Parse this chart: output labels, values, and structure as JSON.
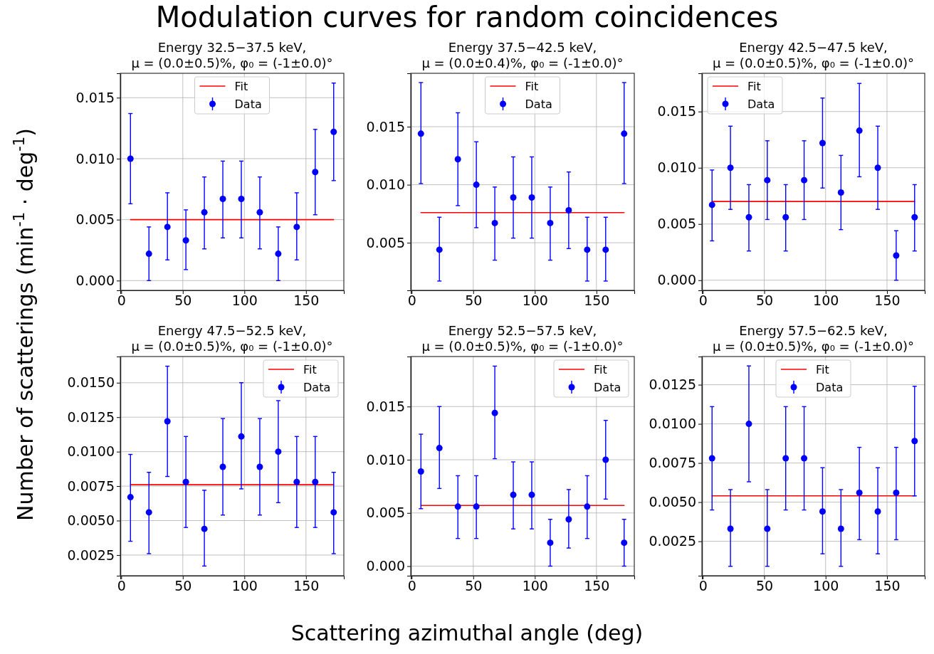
{
  "chart_data": [
    {
      "type": "other",
      "title": "Modulation curves for random coincidences",
      "xlabel": "Scattering azimuthal angle (deg)",
      "ylabel": "Number of scatterings (min$^{-1}$ · deg$^{-1}$)"
    },
    {
      "type": "scatter",
      "title": "Energy 32.5−37.5 keV,\nμ = (0.0±0.5)%, φ₀ = (-1±0.0)°",
      "xlim": [
        -0.75,
        180.75
      ],
      "xticks": [
        0,
        50,
        100,
        150
      ],
      "ylim": [
        -0.0008,
        0.017
      ],
      "yticks": [
        {
          "value": 0,
          "label": "0.000"
        },
        0.005,
        {
          "value": 0.01,
          "label": "0.010"
        },
        0.015
      ],
      "grid": true,
      "legend": "top",
      "series": [
        {
          "name": "Fit",
          "type": "line",
          "marker": "none",
          "color": "#ff0000",
          "x": [
            7.5,
            172.5
          ],
          "values": [
            0.005,
            0.005
          ]
        },
        {
          "name": "Data",
          "type": "scatter",
          "marker": "circle",
          "color": "#0000ff",
          "x": [
            7.5,
            22.5,
            37.5,
            52.5,
            67.5,
            82.5,
            97.5,
            112.5,
            127.5,
            142.5,
            157.5,
            172.5
          ],
          "values": [
            0.01,
            0.0022,
            0.0044,
            0.0033,
            0.0056,
            0.0067,
            0.0067,
            0.0056,
            0.0022,
            0.0044,
            0.0089,
            0.0122
          ],
          "errors": [
            [
              0.0063,
              0.0137
            ],
            [
              0,
              0.0044
            ],
            [
              0.0017,
              0.0072
            ],
            [
              0.0009,
              0.0058
            ],
            [
              0.0026,
              0.0085
            ],
            [
              0.0035,
              0.0098
            ],
            [
              0.0035,
              0.0098
            ],
            [
              0.0026,
              0.0085
            ],
            [
              0,
              0.0044
            ],
            [
              0.0017,
              0.0072
            ],
            [
              0.0054,
              0.0124
            ],
            [
              0.0082,
              0.0162
            ]
          ]
        }
      ]
    },
    {
      "type": "scatter",
      "title": "Energy 37.5−42.5 keV,\nμ = (0.0±0.4)%, φ₀ = (-1±0.0)°",
      "xlim": [
        -0.75,
        180.75
      ],
      "xticks": [
        0,
        50,
        100,
        150
      ],
      "ylim": [
        0.0009,
        0.0196
      ],
      "yticks": [
        0.005,
        {
          "value": 0.01,
          "label": "0.010"
        },
        0.015
      ],
      "grid": true,
      "legend": "top",
      "series": [
        {
          "name": "Fit",
          "type": "line",
          "marker": "none",
          "color": "#ff0000",
          "x": [
            7.5,
            172.5
          ],
          "values": [
            0.0076,
            0.0076
          ]
        },
        {
          "name": "Data",
          "type": "scatter",
          "marker": "circle",
          "color": "#0000ff",
          "x": [
            7.5,
            22.5,
            37.5,
            52.5,
            67.5,
            82.5,
            97.5,
            112.5,
            127.5,
            142.5,
            157.5,
            172.5
          ],
          "values": [
            0.0144,
            0.0044,
            0.0122,
            0.01,
            0.0067,
            0.0089,
            0.0089,
            0.0067,
            0.0078,
            0.0044,
            0.0044,
            0.0144
          ],
          "errors": [
            [
              0.0101,
              0.0188
            ],
            [
              0.0017,
              0.0072
            ],
            [
              0.0082,
              0.0162
            ],
            [
              0.0063,
              0.0137
            ],
            [
              0.0035,
              0.0098
            ],
            [
              0.0054,
              0.0124
            ],
            [
              0.0054,
              0.0124
            ],
            [
              0.0035,
              0.0098
            ],
            [
              0.0045,
              0.0111
            ],
            [
              0.0017,
              0.0072
            ],
            [
              0.0017,
              0.0072
            ],
            [
              0.0101,
              0.0188
            ]
          ]
        }
      ]
    },
    {
      "type": "scatter",
      "title": "Energy 42.5−47.5 keV,\nμ = (0.0±0.5)%, φ₀ = (-1±0.0)°",
      "xlim": [
        -0.75,
        180.75
      ],
      "xticks": [
        0,
        50,
        100,
        150
      ],
      "ylim": [
        -0.0009,
        0.0184
      ],
      "yticks": [
        {
          "value": 0,
          "label": "0.000"
        },
        0.005,
        {
          "value": 0.01,
          "label": "0.010"
        },
        0.015
      ],
      "grid": true,
      "legend": "top left",
      "series": [
        {
          "name": "Fit",
          "type": "line",
          "marker": "none",
          "color": "#ff0000",
          "x": [
            7.5,
            172.5
          ],
          "values": [
            0.007,
            0.007
          ]
        },
        {
          "name": "Data",
          "type": "scatter",
          "marker": "circle",
          "color": "#0000ff",
          "x": [
            7.5,
            22.5,
            37.5,
            52.5,
            67.5,
            82.5,
            97.5,
            112.5,
            127.5,
            142.5,
            157.5,
            172.5
          ],
          "values": [
            0.0067,
            0.01,
            0.0056,
            0.0089,
            0.0056,
            0.0089,
            0.0122,
            0.0078,
            0.0133,
            0.01,
            0.0022,
            0.0056
          ],
          "errors": [
            [
              0.0035,
              0.0098
            ],
            [
              0.0063,
              0.0137
            ],
            [
              0.0026,
              0.0085
            ],
            [
              0.0054,
              0.0124
            ],
            [
              0.0026,
              0.0085
            ],
            [
              0.0054,
              0.0124
            ],
            [
              0.0082,
              0.0162
            ],
            [
              0.0045,
              0.0111
            ],
            [
              0.0092,
              0.0175
            ],
            [
              0.0063,
              0.0137
            ],
            [
              0,
              0.0044
            ],
            [
              0.0026,
              0.0085
            ]
          ]
        }
      ]
    },
    {
      "type": "scatter",
      "title": "Energy 47.5−52.5 keV,\nμ = (0.0±0.5)%, φ₀ = (-1±0.0)°",
      "xlim": [
        -0.75,
        180.75
      ],
      "xticks": [
        0,
        50,
        100,
        150
      ],
      "ylim": [
        0.001,
        0.0169
      ],
      "yticks": [
        0.0025,
        {
          "value": 0.005,
          "label": "0.0050"
        },
        0.0075,
        {
          "value": 0.01,
          "label": "0.0100"
        },
        0.0125,
        {
          "value": 0.015,
          "label": "0.0150"
        }
      ],
      "grid": true,
      "legend": "top right",
      "series": [
        {
          "name": "Fit",
          "type": "line",
          "marker": "none",
          "color": "#ff0000",
          "x": [
            7.5,
            172.5
          ],
          "values": [
            0.0076,
            0.0076
          ]
        },
        {
          "name": "Data",
          "type": "scatter",
          "marker": "circle",
          "color": "#0000ff",
          "x": [
            7.5,
            22.5,
            37.5,
            52.5,
            67.5,
            82.5,
            97.5,
            112.5,
            127.5,
            142.5,
            157.5,
            172.5
          ],
          "values": [
            0.0067,
            0.0056,
            0.0122,
            0.0078,
            0.0044,
            0.0089,
            0.0111,
            0.0089,
            0.01,
            0.0078,
            0.0078,
            0.0056
          ],
          "errors": [
            [
              0.0035,
              0.0098
            ],
            [
              0.0026,
              0.0085
            ],
            [
              0.0082,
              0.0162
            ],
            [
              0.0045,
              0.0111
            ],
            [
              0.0017,
              0.0072
            ],
            [
              0.0054,
              0.0124
            ],
            [
              0.0073,
              0.015
            ],
            [
              0.0054,
              0.0124
            ],
            [
              0.0063,
              0.0137
            ],
            [
              0.0045,
              0.0111
            ],
            [
              0.0045,
              0.0111
            ],
            [
              0.0026,
              0.0085
            ]
          ]
        }
      ]
    },
    {
      "type": "scatter",
      "title": "Energy 52.5−57.5 keV,\nμ = (0.0±0.5)%, φ₀ = (-1±0.0)°",
      "xlim": [
        -0.75,
        180.75
      ],
      "xticks": [
        0,
        50,
        100,
        150
      ],
      "ylim": [
        -0.0009,
        0.0197
      ],
      "yticks": [
        {
          "value": 0,
          "label": "0.000"
        },
        0.005,
        {
          "value": 0.01,
          "label": "0.010"
        },
        0.015
      ],
      "grid": true,
      "legend": "top right",
      "series": [
        {
          "name": "Fit",
          "type": "line",
          "marker": "none",
          "color": "#ff0000",
          "x": [
            7.5,
            172.5
          ],
          "values": [
            0.0057,
            0.0057
          ]
        },
        {
          "name": "Data",
          "type": "scatter",
          "marker": "circle",
          "color": "#0000ff",
          "x": [
            7.5,
            22.5,
            37.5,
            52.5,
            67.5,
            82.5,
            97.5,
            112.5,
            127.5,
            142.5,
            157.5,
            172.5
          ],
          "values": [
            0.0089,
            0.0111,
            0.0056,
            0.0056,
            0.0144,
            0.0067,
            0.0067,
            0.0022,
            0.0044,
            0.0056,
            0.01,
            0.0022
          ],
          "errors": [
            [
              0.0054,
              0.0124
            ],
            [
              0.0073,
              0.015
            ],
            [
              0.0026,
              0.0085
            ],
            [
              0.0026,
              0.0085
            ],
            [
              0.0101,
              0.0188
            ],
            [
              0.0035,
              0.0098
            ],
            [
              0.0035,
              0.0098
            ],
            [
              0,
              0.0044
            ],
            [
              0.0017,
              0.0072
            ],
            [
              0.0026,
              0.0085
            ],
            [
              0.0063,
              0.0137
            ],
            [
              0,
              0.0044
            ]
          ]
        }
      ]
    },
    {
      "type": "scatter",
      "title": "Energy 57.5−62.5 keV,\nμ = (0.0±0.5)%, φ₀ = (-1±0.0)°",
      "xlim": [
        -0.75,
        180.75
      ],
      "xticks": [
        0,
        50,
        100,
        150
      ],
      "ylim": [
        0.0003,
        0.0143
      ],
      "yticks": [
        0.0025,
        {
          "value": 0.005,
          "label": "0.0050"
        },
        0.0075,
        {
          "value": 0.01,
          "label": "0.0100"
        },
        0.0125
      ],
      "grid": true,
      "legend": "top",
      "series": [
        {
          "name": "Fit",
          "type": "line",
          "marker": "none",
          "color": "#ff0000",
          "x": [
            7.5,
            172.5
          ],
          "values": [
            0.0054,
            0.0054
          ]
        },
        {
          "name": "Data",
          "type": "scatter",
          "marker": "circle",
          "color": "#0000ff",
          "x": [
            7.5,
            22.5,
            37.5,
            52.5,
            67.5,
            82.5,
            97.5,
            112.5,
            127.5,
            142.5,
            157.5,
            172.5
          ],
          "values": [
            0.0078,
            0.0033,
            0.01,
            0.0033,
            0.0078,
            0.0078,
            0.0044,
            0.0033,
            0.0056,
            0.0044,
            0.0056,
            0.0089
          ],
          "errors": [
            [
              0.0045,
              0.0111
            ],
            [
              0.0009,
              0.0058
            ],
            [
              0.0063,
              0.0137
            ],
            [
              0.0009,
              0.0058
            ],
            [
              0.0045,
              0.0111
            ],
            [
              0.0045,
              0.0111
            ],
            [
              0.0017,
              0.0072
            ],
            [
              0.0009,
              0.0058
            ],
            [
              0.0026,
              0.0085
            ],
            [
              0.0017,
              0.0072
            ],
            [
              0.0026,
              0.0085
            ],
            [
              0.0054,
              0.0124
            ]
          ]
        }
      ]
    }
  ]
}
